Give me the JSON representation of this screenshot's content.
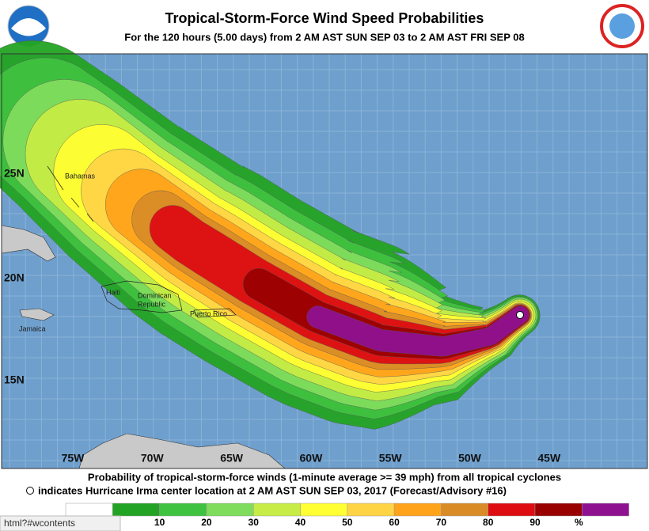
{
  "header": {
    "title": "Tropical-Storm-Force Wind Speed Probabilities",
    "subtitle": "For the 120 hours (5.00 days) from 2 AM AST SUN SEP 03 to 2 AM AST FRI SEP 08"
  },
  "map": {
    "lat_labels": [
      "25N",
      "20N",
      "15N"
    ],
    "lon_labels": [
      "75W",
      "70W",
      "65W",
      "60W",
      "55W",
      "50W",
      "45W"
    ],
    "places": {
      "bahamas": "Bahamas",
      "haiti": "Haiti",
      "dominican": [
        "Dominican",
        "Republic"
      ],
      "puerto_rico": "Puerto Rico",
      "jamaica": "Jamaica"
    }
  },
  "footer": {
    "line1": "Probability of tropical-storm-force winds (1-minute average >= 39 mph) from all tropical cyclones",
    "line2": "indicates Hurricane Irma center location at 2 AM AST SUN SEP 03, 2017 (Forecast/Advisory #16)"
  },
  "legend": {
    "colors": [
      "#ffffff",
      "#23a323",
      "#3fc23f",
      "#7fdc5c",
      "#c6ec45",
      "#ffff33",
      "#ffd444",
      "#ffa31a",
      "#d98c26",
      "#dd0d12",
      "#990000",
      "#8e1190"
    ],
    "labels": [
      10,
      20,
      30,
      40,
      50,
      60,
      70,
      80,
      90
    ],
    "unit": "%"
  },
  "status": "html?#wcontents"
}
